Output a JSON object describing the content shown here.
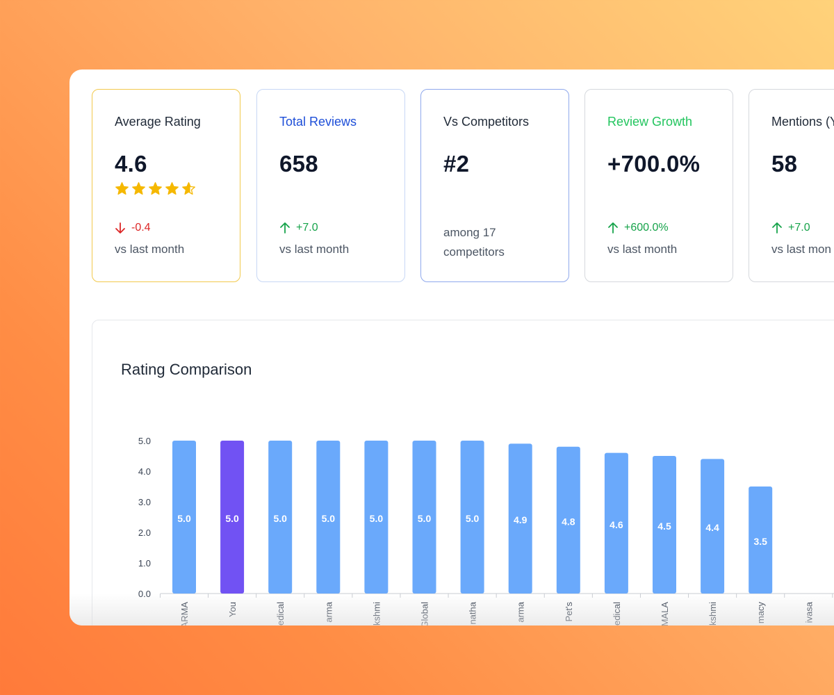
{
  "cards": {
    "rating": {
      "title": "Average Rating",
      "value": "4.6",
      "stars": 4.6,
      "delta": "-0.4",
      "delta_color": "#dc2626",
      "sub": "vs last month",
      "border": "#f2c94c",
      "title_color": "#1f2937"
    },
    "reviews": {
      "title": "Total Reviews",
      "value": "658",
      "delta": "+7.0",
      "delta_color": "#16a34a",
      "sub": "vs last month",
      "border": "#c7d7f5",
      "title_color": "#1d4ed8"
    },
    "competitors": {
      "title": "Vs Competitors",
      "value": "#2",
      "sub_line1": "among 17",
      "sub_line2": "competitors",
      "border": "#8fa8ec",
      "title_color": "#1f2937"
    },
    "growth": {
      "title": "Review Growth",
      "value": "+700.0%",
      "delta": "+600.0%",
      "delta_color": "#16a34a",
      "sub": "vs last month",
      "border": "#d5d8dd",
      "title_color": "#22c55e"
    },
    "mentions": {
      "title": "Mentions (Y",
      "value": "58",
      "delta": "+7.0",
      "delta_color": "#16a34a",
      "sub": "vs last mon",
      "border": "#d5d8dd",
      "title_color": "#1f2937"
    }
  },
  "chart": {
    "title": "Rating Comparison",
    "bar_color": "#6aa9fb",
    "highlight_color": "#7152f3"
  },
  "chart_data": {
    "type": "bar",
    "categories": [
      "ARMA",
      "You",
      "edical",
      "arma",
      "kshmi",
      "Global",
      "natha",
      "arma",
      "Pet's",
      "edical",
      "MALA",
      "kshmi",
      "macy",
      "ivasa"
    ],
    "values": [
      5.0,
      5.0,
      5.0,
      5.0,
      5.0,
      5.0,
      5.0,
      4.9,
      4.8,
      4.6,
      4.5,
      4.4,
      3.5,
      0
    ],
    "labels": [
      "5.0",
      "5.0",
      "5.0",
      "5.0",
      "5.0",
      "5.0",
      "5.0",
      "4.9",
      "4.8",
      "4.6",
      "4.5",
      "4.4",
      "3.5",
      ""
    ],
    "highlight_index": 1,
    "yticks": [
      "5.0",
      "4.0",
      "3.0",
      "2.0",
      "1.0",
      "0.0"
    ],
    "ylim": [
      0,
      5
    ],
    "grid": false,
    "legend": "none"
  }
}
